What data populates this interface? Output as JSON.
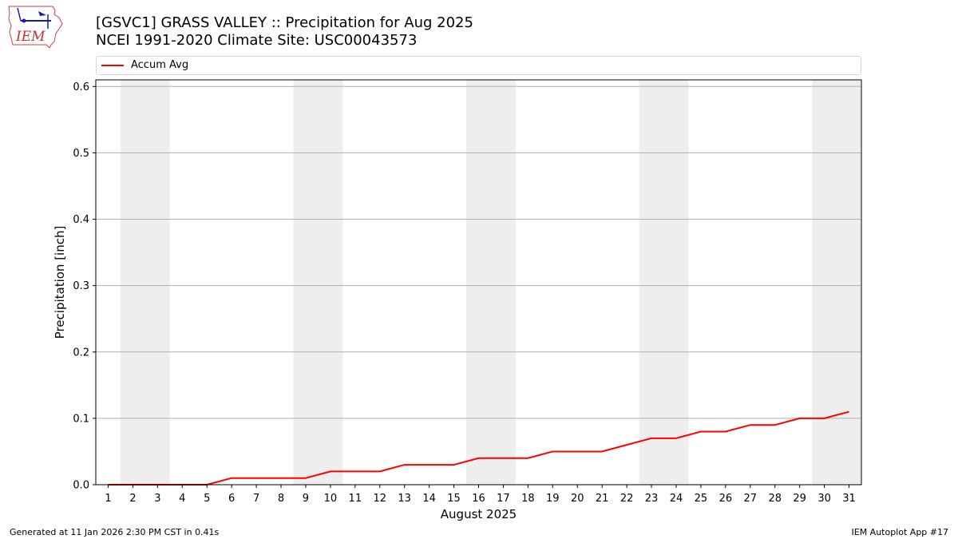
{
  "logo": {
    "text": "IEM"
  },
  "header": {
    "title_line1": "[GSVC1] GRASS VALLEY :: Precipitation for Aug 2025",
    "title_line2": "NCEI 1991-2020 Climate Site: USC00043573"
  },
  "chart_data": {
    "type": "line",
    "xlabel": "August 2025",
    "ylabel": "Precipitation [inch]",
    "xlim": [
      0.5,
      31.5
    ],
    "ylim": [
      0,
      0.61
    ],
    "x": [
      1,
      2,
      3,
      4,
      5,
      6,
      7,
      8,
      9,
      10,
      11,
      12,
      13,
      14,
      15,
      16,
      17,
      18,
      19,
      20,
      21,
      22,
      23,
      24,
      25,
      26,
      27,
      28,
      29,
      30,
      31
    ],
    "y_ticks": [
      0.0,
      0.1,
      0.2,
      0.3,
      0.4,
      0.5,
      0.6
    ],
    "y_tick_labels": [
      "0.0",
      "0.1",
      "0.2",
      "0.3",
      "0.4",
      "0.5",
      "0.6"
    ],
    "grid": "horizontal",
    "legend": "top",
    "weekend_shading": [
      [
        2,
        3
      ],
      [
        9,
        10
      ],
      [
        16,
        17
      ],
      [
        23,
        24
      ],
      [
        30,
        31
      ]
    ],
    "shading_color": "#eeeeee",
    "series": [
      {
        "name": "Accum Avg",
        "color": "#ff0000",
        "values": [
          0.0,
          0.0,
          0.0,
          0.0,
          0.0,
          0.01,
          0.01,
          0.01,
          0.01,
          0.02,
          0.02,
          0.02,
          0.03,
          0.03,
          0.03,
          0.04,
          0.04,
          0.04,
          0.05,
          0.05,
          0.05,
          0.06,
          0.07,
          0.07,
          0.08,
          0.08,
          0.09,
          0.09,
          0.1,
          0.1,
          0.11
        ]
      }
    ]
  },
  "footer": {
    "left": "Generated at 11 Jan 2026 2:30 PM CST in 0.41s",
    "right": "IEM Autoplot App #17"
  }
}
